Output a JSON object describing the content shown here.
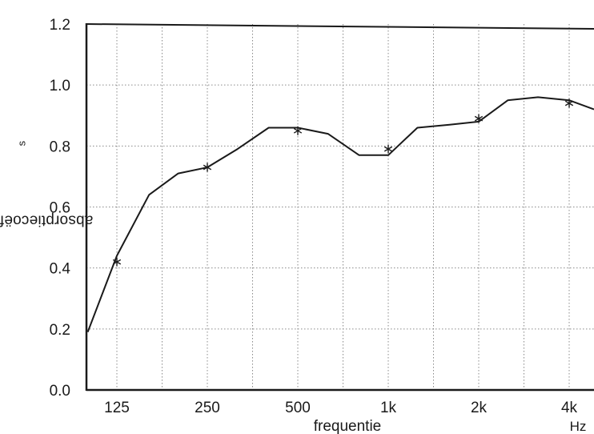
{
  "chart_data": {
    "type": "line",
    "ylabel": "absorptiecoëfficiënt α",
    "ylabel_subscript": "s",
    "xlabel": "frequentie",
    "x_unit": "Hz",
    "x_scale": "log",
    "ylim": [
      0,
      1.2
    ],
    "grid": true,
    "y_ticks": [
      "0.0",
      "0.2",
      "0.4",
      "0.6",
      "0.8",
      "1.0",
      "1.2"
    ],
    "x_ticks": [
      {
        "label": "125",
        "value": 125
      },
      {
        "label": "250",
        "value": 250
      },
      {
        "label": "500",
        "value": 500
      },
      {
        "label": "1k",
        "value": 1000
      },
      {
        "label": "2k",
        "value": 2000
      },
      {
        "label": "4k",
        "value": 4000
      }
    ],
    "series": [
      {
        "type": "line",
        "color": "#1a1a1a",
        "points": [
          [
            100,
            0.19
          ],
          [
            125,
            0.44
          ],
          [
            160,
            0.64
          ],
          [
            200,
            0.71
          ],
          [
            250,
            0.73
          ],
          [
            315,
            0.79
          ],
          [
            400,
            0.86
          ],
          [
            500,
            0.86
          ],
          [
            630,
            0.84
          ],
          [
            800,
            0.77
          ],
          [
            1000,
            0.77
          ],
          [
            1250,
            0.86
          ],
          [
            1600,
            0.87
          ],
          [
            2000,
            0.88
          ],
          [
            2500,
            0.95
          ],
          [
            3150,
            0.96
          ],
          [
            4000,
            0.95
          ],
          [
            5000,
            0.92
          ]
        ]
      },
      {
        "type": "scatter",
        "marker": "*",
        "color": "#1a1a1a",
        "points": [
          [
            125,
            0.42
          ],
          [
            250,
            0.73
          ],
          [
            500,
            0.85
          ],
          [
            1000,
            0.79
          ],
          [
            2000,
            0.89
          ],
          [
            4000,
            0.94
          ]
        ]
      }
    ]
  }
}
